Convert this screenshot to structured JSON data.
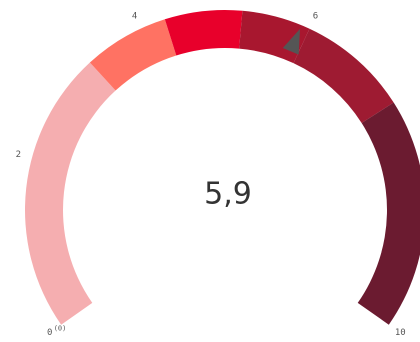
{
  "chart_data": {
    "type": "gauge",
    "value": 5.9,
    "value_label": "5,9",
    "ylim": [
      0,
      10
    ],
    "yticks": [
      0,
      2,
      4,
      6,
      10
    ],
    "zero_note": "(0)",
    "bands": [
      {
        "from": 0,
        "to": 3.3,
        "color": "#f5aeb0"
      },
      {
        "from": 3.3,
        "to": 4.3,
        "color": "#ff7263"
      },
      {
        "from": 4.3,
        "to": 5.2,
        "color": "#e8002b"
      },
      {
        "from": 5.2,
        "to": 6,
        "color": "#a8172f"
      },
      {
        "from": 6,
        "to": 7.3,
        "color": "#9e1b32"
      },
      {
        "from": 7.3,
        "to": 10,
        "color": "#6b1b30"
      }
    ],
    "needle_color": "#555555"
  }
}
